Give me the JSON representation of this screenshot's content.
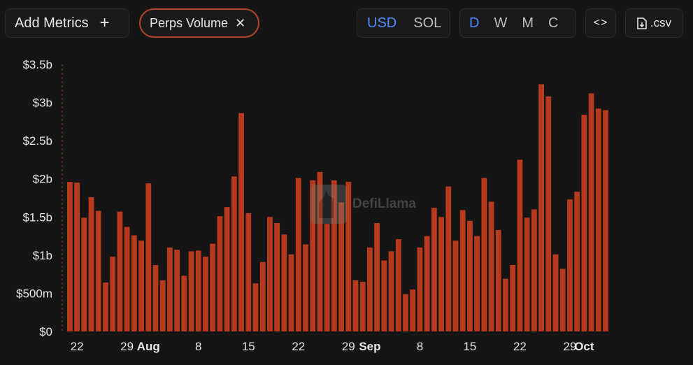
{
  "toolbar": {
    "add_metrics_label": "Add Metrics",
    "plus_symbol": "+",
    "metric_chip_label": "Perps Volume",
    "metric_chip_close": "✕",
    "currency_options": [
      "USD",
      "SOL"
    ],
    "currency_selected": "USD",
    "period_options": [
      "D",
      "W",
      "M",
      "C"
    ],
    "period_selected": "D",
    "embed_label": "<>",
    "csv_label": ".csv"
  },
  "watermark_text": "DefiLlama",
  "colors": {
    "bar": "#b73a1e",
    "background": "#151515",
    "accent": "#4f8cff",
    "chip_border": "#b1442a"
  },
  "chart_data": {
    "type": "bar",
    "title": "",
    "xlabel": "",
    "ylabel": "",
    "ylim": [
      0,
      3.5
    ],
    "y_unit": "billions USD",
    "y_tick_labels": [
      "$0",
      "$500m",
      "$1b",
      "$1.5b",
      "$2b",
      "$2.5b",
      "$3b",
      "$3.5b"
    ],
    "y_tick_values": [
      0,
      0.5,
      1,
      1.5,
      2,
      2.5,
      3,
      3.5
    ],
    "x_tick_labels": [
      {
        "label": "22",
        "bold": false,
        "bar_index": 1
      },
      {
        "label": "29",
        "bold": false,
        "bar_index": 8
      },
      {
        "label": "Aug",
        "bold": true,
        "bar_index": 11
      },
      {
        "label": "8",
        "bold": false,
        "bar_index": 18
      },
      {
        "label": "15",
        "bold": false,
        "bar_index": 25
      },
      {
        "label": "22",
        "bold": false,
        "bar_index": 32
      },
      {
        "label": "29",
        "bold": false,
        "bar_index": 39
      },
      {
        "label": "Sep",
        "bold": true,
        "bar_index": 42
      },
      {
        "label": "8",
        "bold": false,
        "bar_index": 49
      },
      {
        "label": "15",
        "bold": false,
        "bar_index": 56
      },
      {
        "label": "22",
        "bold": false,
        "bar_index": 63
      },
      {
        "label": "29",
        "bold": false,
        "bar_index": 70
      },
      {
        "label": "Oct",
        "bold": true,
        "bar_index": 72
      }
    ],
    "values": [
      1.96,
      1.95,
      1.49,
      1.76,
      1.58,
      0.64,
      0.98,
      1.57,
      1.37,
      1.26,
      1.19,
      1.94,
      0.87,
      0.67,
      1.1,
      1.07,
      0.73,
      1.05,
      1.06,
      0.98,
      1.15,
      1.51,
      1.63,
      2.03,
      2.86,
      1.55,
      0.63,
      0.91,
      1.5,
      1.42,
      1.27,
      1.01,
      2.01,
      1.14,
      1.98,
      2.09,
      1.41,
      1.98,
      1.69,
      1.96,
      0.67,
      0.65,
      1.1,
      1.42,
      0.93,
      1.05,
      1.21,
      0.49,
      0.55,
      1.1,
      1.25,
      1.62,
      1.5,
      1.9,
      1.19,
      1.59,
      1.45,
      1.25,
      2.01,
      1.7,
      1.33,
      0.69,
      0.87,
      2.25,
      1.49,
      1.6,
      3.24,
      3.08,
      1.01,
      0.82,
      1.73,
      1.83,
      2.84,
      3.12,
      2.92,
      2.9
    ]
  }
}
